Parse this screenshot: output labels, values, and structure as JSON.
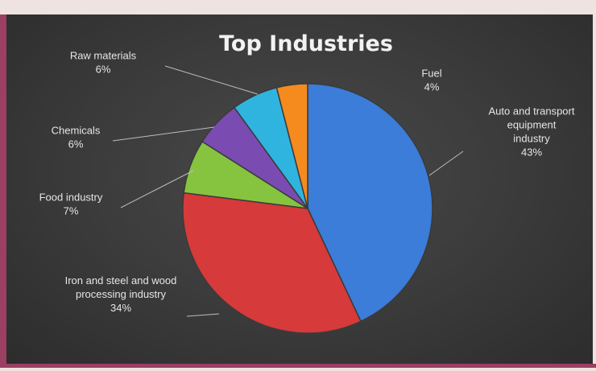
{
  "chart_data": {
    "type": "pie",
    "title": "Top Industries",
    "slices": [
      {
        "label": [
          "Auto and transport",
          "equipment",
          "industry"
        ],
        "pct_label": "43%",
        "value": 43,
        "color": "#3b7dd8"
      },
      {
        "label": [
          "Iron and steel and wood",
          "processing industry"
        ],
        "pct_label": "34%",
        "value": 34,
        "color": "#d63a3a"
      },
      {
        "label": [
          "Food industry"
        ],
        "pct_label": "7%",
        "value": 7,
        "color": "#86c440"
      },
      {
        "label": [
          "Chemicals"
        ],
        "pct_label": "6%",
        "value": 6,
        "color": "#7a4bb0"
      },
      {
        "label": [
          "Raw materials"
        ],
        "pct_label": "6%",
        "value": 6,
        "color": "#2fb4e0"
      },
      {
        "label": [
          "Fuel"
        ],
        "pct_label": "4%",
        "value": 4,
        "color": "#f58a1f"
      }
    ],
    "legend": "none",
    "start": "12 o'clock",
    "direction": "clockwise"
  }
}
